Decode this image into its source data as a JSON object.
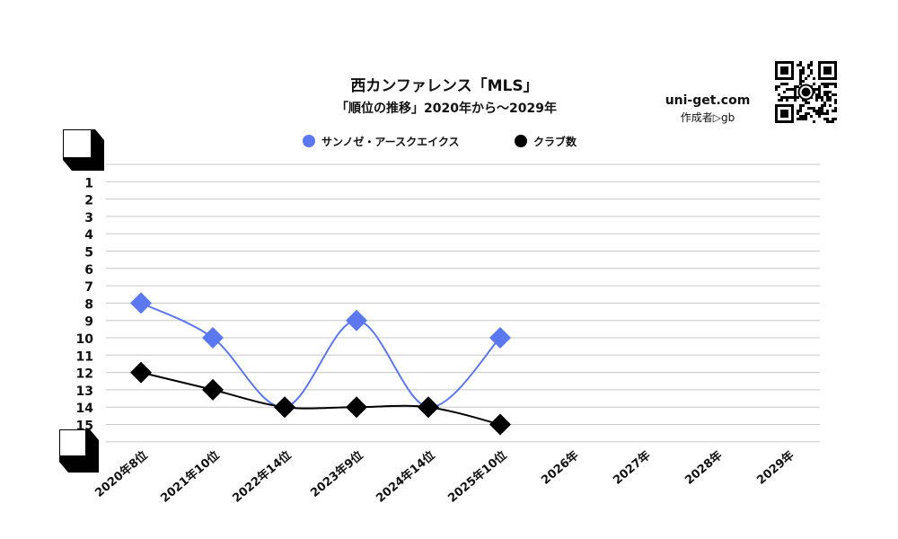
{
  "header": {
    "title": "西カンファレンス「MLS」",
    "subtitle": "「順位の推移」2020年から～2029年",
    "site": "uni-get.com",
    "author": "作成者▷gb"
  },
  "colors": {
    "series_team": "#5b78f0",
    "series_clubs": "#000000",
    "grid": "#c8c8c8",
    "text": "#111111"
  },
  "chart_data": {
    "type": "line",
    "title": "西カンファレンス「MLS」",
    "subtitle": "「順位の推移」2020年から～2029年",
    "categories": [
      "2020年8位",
      "2021年10位",
      "2022年14位",
      "2023年9位",
      "2024年14位",
      "2025年10位",
      "2026年",
      "2027年",
      "2028年",
      "2029年"
    ],
    "y_ticks": [
      "1",
      "2",
      "3",
      "4",
      "5",
      "6",
      "7",
      "8",
      "9",
      "10",
      "11",
      "12",
      "13",
      "14",
      "15"
    ],
    "y_reversed": true,
    "ylim": [
      0,
      16
    ],
    "grid": true,
    "legend": "top-center",
    "series": [
      {
        "name": "サンノゼ・アースクエイクス",
        "values": [
          8,
          10,
          14,
          9,
          14,
          10,
          null,
          null,
          null,
          null
        ],
        "color": "#5b78f0",
        "smooth": true
      },
      {
        "name": "クラブ数",
        "values": [
          12,
          13,
          14,
          14,
          14,
          15,
          null,
          null,
          null,
          null
        ],
        "color": "#000000",
        "smooth": true
      }
    ]
  }
}
